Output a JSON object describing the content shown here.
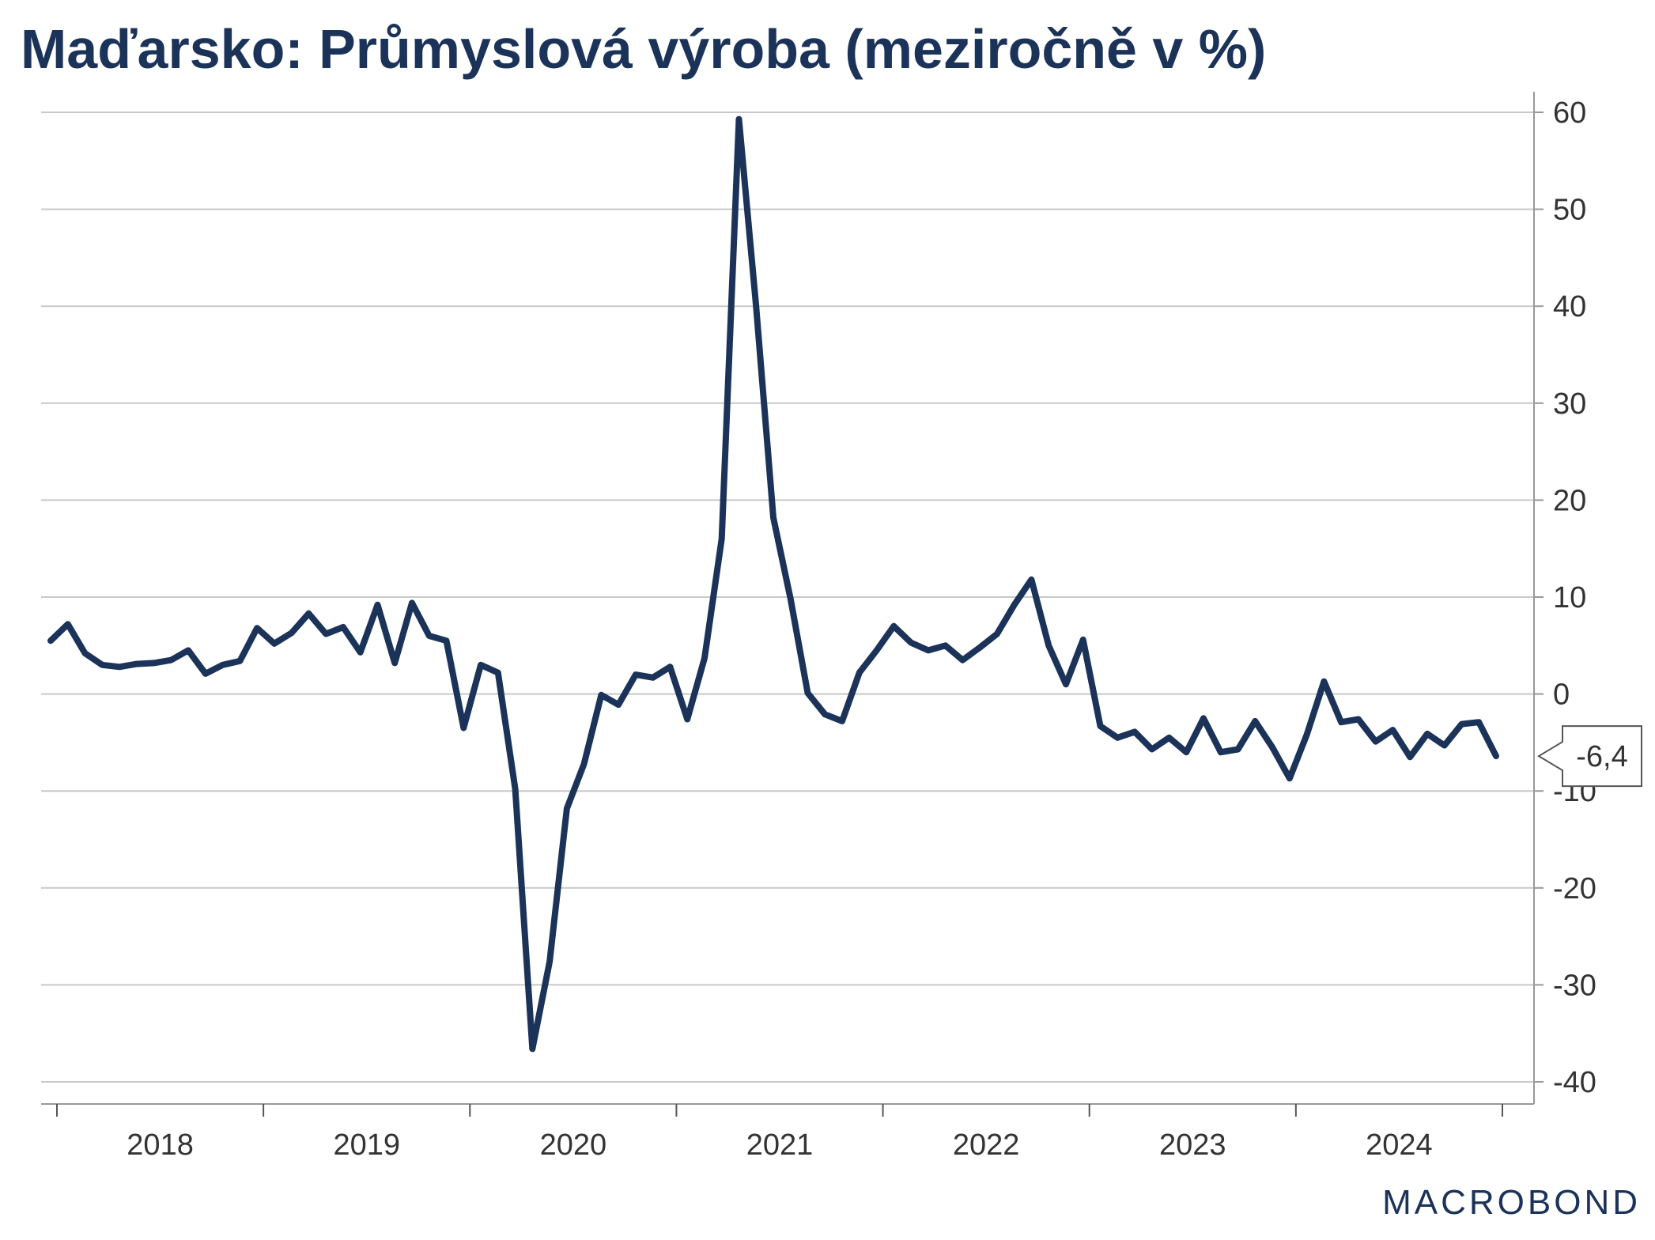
{
  "title": "Maďarsko: Průmyslová výroba (meziročně v %)",
  "brand": "MACROBOND",
  "colors": {
    "line": "#1c3359",
    "grid": "#c8c8c8",
    "axis": "#999999",
    "text": "#333333"
  },
  "chart_data": {
    "type": "line",
    "title": "Maďarsko: Průmyslová výroba (meziročně v %)",
    "xlabel": "",
    "ylabel": "",
    "ylim": [
      -40,
      60
    ],
    "y_ticks": [
      60,
      50,
      40,
      30,
      20,
      10,
      0,
      -10,
      -20,
      -30,
      -40
    ],
    "y_axis_side": "right",
    "grid": true,
    "x_start": "2017-12",
    "x_end": "2024-10",
    "x_tick_labels": [
      "2018",
      "2019",
      "2020",
      "2021",
      "2022",
      "2023",
      "2024"
    ],
    "last_value_label": "-6,4",
    "series": [
      {
        "name": "",
        "values": [
          5.5,
          7.2,
          4.2,
          3.0,
          2.8,
          3.1,
          3.2,
          3.5,
          4.5,
          2.1,
          3.0,
          3.4,
          6.8,
          5.2,
          6.3,
          8.3,
          6.2,
          6.9,
          4.3,
          9.2,
          3.2,
          9.4,
          6.0,
          5.5,
          -3.5,
          3.0,
          2.2,
          -9.8,
          -36.6,
          -27.6,
          -11.8,
          -7.2,
          -0.1,
          -1.1,
          2.0,
          1.7,
          2.8,
          -2.6,
          3.7,
          16.0,
          59.3,
          40.0,
          18.2,
          9.8,
          0.1,
          -2.1,
          -2.8,
          2.2,
          4.5,
          7.0,
          5.3,
          4.5,
          5.0,
          3.5,
          4.8,
          6.2,
          9.2,
          11.8,
          5.0,
          1.0,
          5.6,
          -3.3,
          -4.5,
          -3.9,
          -5.7,
          -4.5,
          -6.0,
          -2.5,
          -6.0,
          -5.7,
          -2.8,
          -5.5,
          -8.7,
          -4.2,
          1.3,
          -2.9,
          -2.6,
          -4.9,
          -3.7,
          -6.5,
          -4.1,
          -5.3,
          -3.1,
          -2.9,
          -6.4
        ]
      }
    ]
  }
}
